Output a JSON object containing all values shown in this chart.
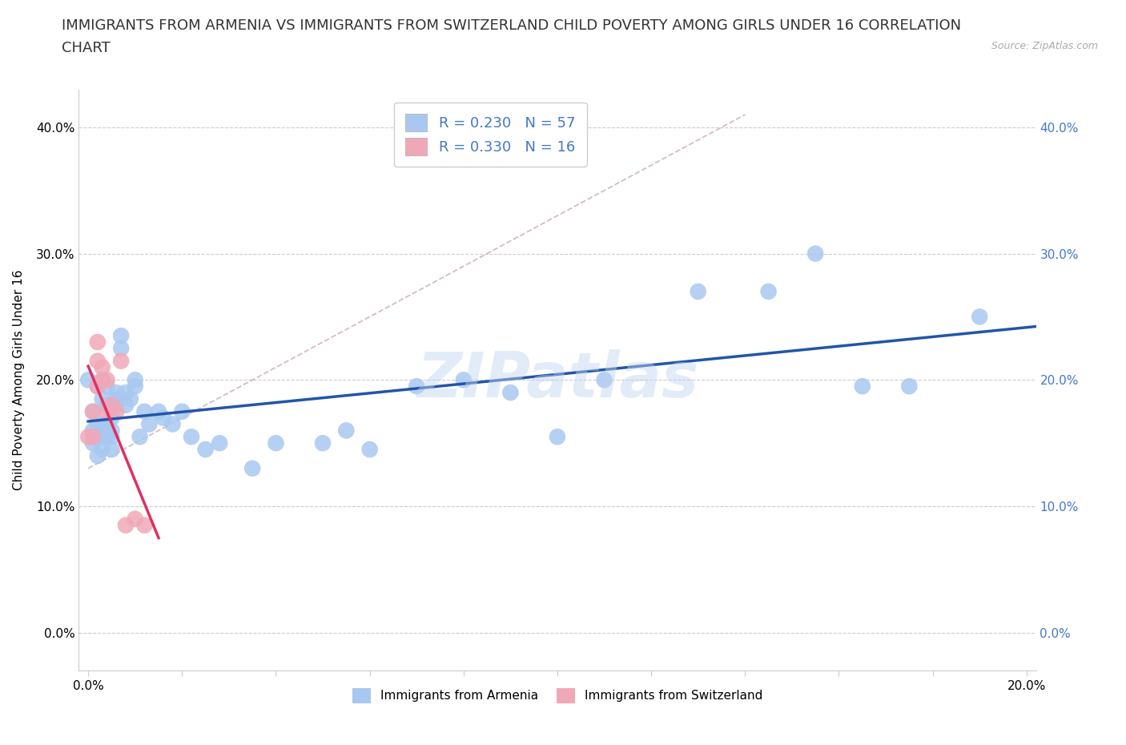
{
  "title_line1": "IMMIGRANTS FROM ARMENIA VS IMMIGRANTS FROM SWITZERLAND CHILD POVERTY AMONG GIRLS UNDER 16 CORRELATION",
  "title_line2": "CHART",
  "source_text": "Source: ZipAtlas.com",
  "ylabel": "Child Poverty Among Girls Under 16",
  "xlabel": "",
  "armenia_R": 0.23,
  "armenia_N": 57,
  "switzerland_R": 0.33,
  "switzerland_N": 16,
  "armenia_color": "#a8c8f0",
  "switzerland_color": "#f0a8b8",
  "armenia_line_color": "#2255aa",
  "switzerland_line_color": "#e03060",
  "watermark": "ZIPatlas",
  "background_color": "#ffffff",
  "title_fontsize": 13,
  "axis_label_fontsize": 11,
  "tick_fontsize": 11,
  "right_tick_color": "#4477cc",
  "armenia_scatter_x": [
    0.0,
    0.001,
    0.001,
    0.001,
    0.002,
    0.002,
    0.002,
    0.002,
    0.003,
    0.003,
    0.003,
    0.003,
    0.003,
    0.004,
    0.004,
    0.004,
    0.004,
    0.005,
    0.005,
    0.005,
    0.005,
    0.006,
    0.006,
    0.006,
    0.007,
    0.007,
    0.008,
    0.008,
    0.009,
    0.01,
    0.01,
    0.011,
    0.012,
    0.013,
    0.015,
    0.016,
    0.018,
    0.02,
    0.022,
    0.025,
    0.028,
    0.035,
    0.04,
    0.05,
    0.055,
    0.06,
    0.07,
    0.08,
    0.09,
    0.1,
    0.11,
    0.13,
    0.145,
    0.155,
    0.165,
    0.175,
    0.19
  ],
  "armenia_scatter_y": [
    0.2,
    0.15,
    0.16,
    0.175,
    0.155,
    0.165,
    0.14,
    0.195,
    0.165,
    0.2,
    0.145,
    0.155,
    0.185,
    0.165,
    0.155,
    0.18,
    0.195,
    0.16,
    0.17,
    0.145,
    0.155,
    0.18,
    0.185,
    0.19,
    0.225,
    0.235,
    0.18,
    0.19,
    0.185,
    0.195,
    0.2,
    0.155,
    0.175,
    0.165,
    0.175,
    0.17,
    0.165,
    0.175,
    0.155,
    0.145,
    0.15,
    0.13,
    0.15,
    0.15,
    0.16,
    0.145,
    0.195,
    0.2,
    0.19,
    0.155,
    0.2,
    0.27,
    0.27,
    0.3,
    0.195,
    0.195,
    0.25
  ],
  "switzerland_scatter_x": [
    0.0,
    0.001,
    0.001,
    0.002,
    0.002,
    0.002,
    0.003,
    0.003,
    0.004,
    0.004,
    0.005,
    0.006,
    0.007,
    0.008,
    0.01,
    0.012
  ],
  "switzerland_scatter_y": [
    0.155,
    0.155,
    0.175,
    0.195,
    0.215,
    0.23,
    0.21,
    0.2,
    0.175,
    0.2,
    0.18,
    0.175,
    0.215,
    0.085,
    0.09,
    0.085
  ],
  "xlim_min": -0.002,
  "xlim_max": 0.202,
  "ylim_min": -0.03,
  "ylim_max": 0.43,
  "yticks": [
    0.0,
    0.1,
    0.2,
    0.3,
    0.4
  ],
  "xtick_step": 0.02
}
